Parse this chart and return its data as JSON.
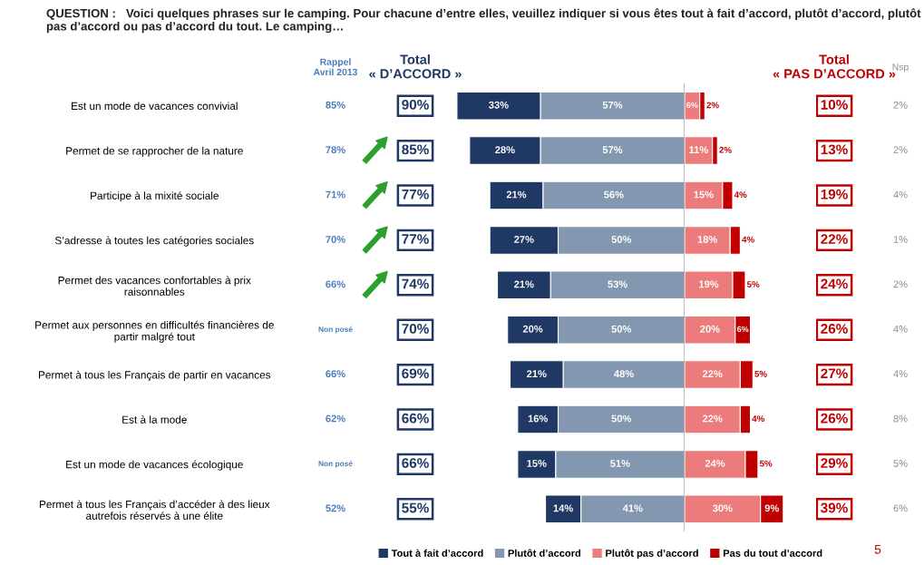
{
  "chart_data": [
    {
      "type": "bar",
      "orientation": "horizontal",
      "stacked": true,
      "tick_labels": "y",
      "legend": "bottom",
      "title": "QUESTION :   Voici quelques phrases sur le camping. Pour chacune d’entre elles, veuillez indiquer si vous êtes tout à fait d’accord, plutôt d’accord, plutôt pas d’accord ou pas d’accord du tout. Le camping…",
      "categories": [
        "Est un mode de vacances convivial",
        "Permet de se rapprocher de la nature",
        "Participe à la mixité sociale",
        "S’adresse à toutes les catégories sociales",
        "Permet des vacances confortables à prix\nraisonnables",
        "Permet aux personnes en difficultés financières de\npartir malgré tout",
        "Permet à tous les Français de partir en vacances",
        "Est à la mode",
        "Est un mode de vacances écologique",
        "Permet à tous les Français d’accéder à des lieux\nautrefois réservés à une élite"
      ],
      "series": [
        {
          "name": "Plutôt d’accord",
          "color": "#8497b0",
          "values": [
            57,
            57,
            56,
            50,
            53,
            50,
            48,
            50,
            51,
            41
          ],
          "value_labels": [
            "57%",
            "57%",
            "56%",
            "50%",
            "53%",
            "50%",
            "48%",
            "50%",
            "51%",
            "41%"
          ]
        },
        {
          "name": "Tout à fait d’accord",
          "color": "#1f3864",
          "values": [
            33,
            28,
            21,
            27,
            21,
            20,
            21,
            16,
            15,
            14
          ],
          "value_labels": [
            "33%",
            "28%",
            "21%",
            "27%",
            "21%",
            "20%",
            "21%",
            "16%",
            "15%",
            "14%"
          ]
        }
      ],
      "annotations": [
        "Rappel\nAvril 2013",
        "Total\n« D’ACCORD »",
        "Total\n« PAS D’ACCORD »",
        "Nsp",
        "85%",
        "78%",
        "71%",
        "70%",
        "66%",
        "Non posé",
        "66%",
        "62%",
        "Non posé",
        "52%",
        "90%",
        "85%",
        "77%",
        "77%",
        "74%",
        "70%",
        "69%",
        "66%",
        "66%",
        "55%",
        "10%",
        "13%",
        "19%",
        "22%",
        "24%",
        "26%",
        "27%",
        "26%",
        "29%",
        "39%",
        "2%",
        "2%",
        "4%",
        "1%",
        "2%",
        "4%",
        "4%",
        "8%",
        "5%",
        "6%",
        "5"
      ]
    },
    {
      "type": "bar",
      "orientation": "horizontal",
      "stacked": true,
      "tick_labels": false,
      "legend": "bottom",
      "categories": [
        null,
        null,
        null,
        null,
        null,
        null,
        null,
        null,
        null,
        null
      ],
      "series": [
        {
          "name": "Plutôt pas d’accord",
          "color": "#ec7c7c",
          "values": [
            6,
            11,
            15,
            18,
            19,
            20,
            22,
            22,
            24,
            30
          ],
          "value_labels": [
            "6%",
            "11%",
            "15%",
            "18%",
            "19%",
            "20%",
            "22%",
            "22%",
            "24%",
            "30%"
          ]
        },
        {
          "name": "Pas du tout d’accord",
          "color": "#c00000",
          "values": [
            2,
            2,
            4,
            4,
            5,
            6,
            5,
            4,
            5,
            9
          ],
          "value_labels": [
            "2%",
            "2%",
            "4%",
            "4%",
            "5%",
            "6%",
            "5%",
            "4%",
            "5%",
            "9%"
          ]
        }
      ]
    }
  ]
}
